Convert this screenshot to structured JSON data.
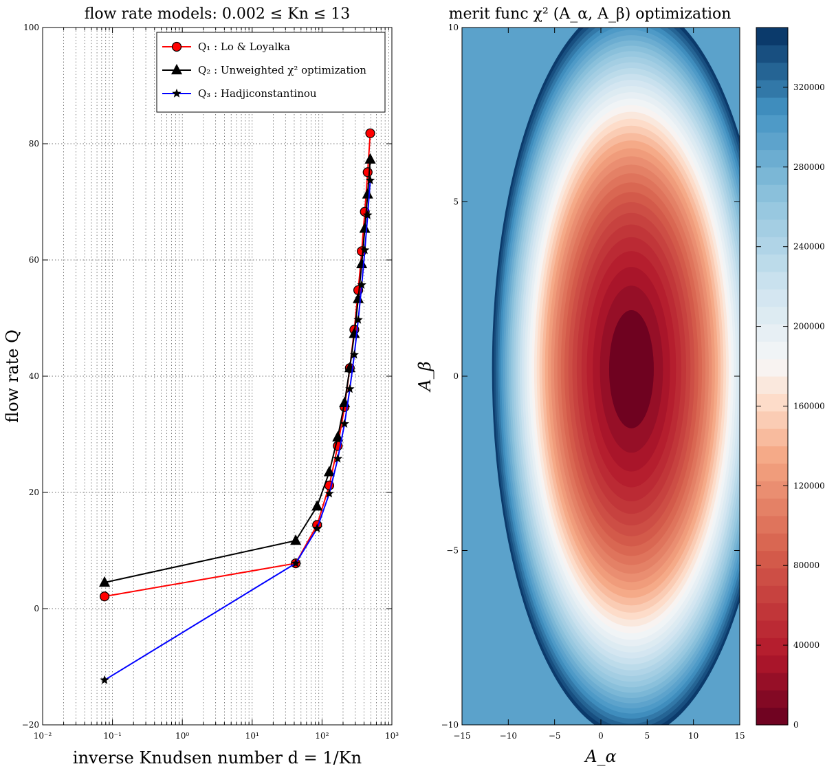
{
  "chart_data": [
    {
      "type": "line",
      "title": "flow rate models: 0.002 ≤ Kn ≤ 13",
      "xlabel": "inverse Knudsen number d = 1/Kn",
      "ylabel": "flow rate Q",
      "xscale": "log",
      "xlim": [
        0.01,
        1000
      ],
      "ylim": [
        -20,
        100
      ],
      "x_ticks": [
        "10⁻²",
        "10⁻¹",
        "10⁰",
        "10¹",
        "10²",
        "10³"
      ],
      "y_ticks": [
        "−20",
        "0",
        "20",
        "40",
        "60",
        "80",
        "100"
      ],
      "grid": true,
      "legend_position": "top-right",
      "series": [
        {
          "name": "Q₁ : Lo & Loyalka",
          "color": "#ff0000",
          "marker": "circle",
          "marker_fill": "#ff0000",
          "x": [
            0.077,
            42,
            85,
            127,
            168,
            210,
            250,
            290,
            330,
            370,
            410,
            450,
            490
          ],
          "y": [
            2.1,
            7.8,
            14.4,
            21.2,
            28.0,
            34.7,
            41.4,
            48.0,
            54.8,
            61.5,
            68.3,
            75.1,
            81.8
          ]
        },
        {
          "name": "Q₂ : Unweighted χ² optimization",
          "color": "#000000",
          "marker": "triangle",
          "marker_fill": "#000000",
          "x": [
            0.077,
            42,
            85,
            127,
            168,
            210,
            250,
            290,
            330,
            370,
            410,
            450,
            490
          ],
          "y": [
            4.5,
            11.7,
            17.6,
            23.5,
            29.5,
            35.4,
            41.4,
            47.3,
            53.3,
            59.3,
            65.4,
            71.3,
            77.3
          ]
        },
        {
          "name": "Q₃ : Hadjiconstantinou",
          "color": "#0000ff",
          "marker": "star",
          "marker_fill": "#000000",
          "x": [
            0.077,
            42,
            85,
            127,
            168,
            210,
            250,
            290,
            330,
            370,
            410,
            450,
            490
          ],
          "y": [
            -12.3,
            7.8,
            13.8,
            19.8,
            25.8,
            31.8,
            37.8,
            43.7,
            49.7,
            55.7,
            61.7,
            67.7,
            73.7
          ]
        }
      ]
    },
    {
      "type": "heatmap",
      "title": "merit func χ² (A_α, A_β) optimization",
      "xlabel": "A_α",
      "ylabel": "A_β",
      "xlim": [
        -15,
        15
      ],
      "ylim": [
        -10,
        10
      ],
      "x_ticks": [
        "−15",
        "−10",
        "−5",
        "0",
        "5",
        "10",
        "15"
      ],
      "y_ticks": [
        "−10",
        "−5",
        "0",
        "5",
        "10"
      ],
      "minimum": {
        "x": 3.3,
        "y": 0.2
      },
      "colormap": "RdBu (red = low, blue = high)",
      "colorbar_range": [
        0,
        350000
      ],
      "colorbar_ticks": [
        "0",
        "40000",
        "80000",
        "120000",
        "160000",
        "200000",
        "240000",
        "280000",
        "320000"
      ]
    }
  ]
}
